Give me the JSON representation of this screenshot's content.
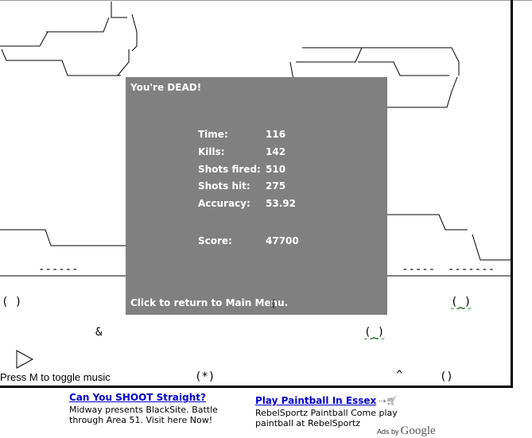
{
  "game": {
    "dialog": {
      "title": "You're DEAD!",
      "stats": [
        {
          "label": "Time:",
          "value": "116"
        },
        {
          "label": "Kills:",
          "value": "142"
        },
        {
          "label": "Shots fired:",
          "value": "510"
        },
        {
          "label": "Shots hit:",
          "value": "275"
        },
        {
          "label": "Accuracy:",
          "value": "53.92"
        }
      ],
      "score": {
        "label": "Score:",
        "value": "47700"
      },
      "footer": "Click to return to Main Menu."
    },
    "music_hint": "Press M to toggle music",
    "sprites": {
      "enemy_a": "( )",
      "enemy_b": "(_)",
      "enemy_c": "(_)",
      "enemy_d": "()",
      "ampersand": "&",
      "player": "(*)",
      "caret": "^",
      "cursor_marker": "(",
      "dash_1": "------",
      "dash_2": "--",
      "dash_3": "---------",
      "dash_4": "-----",
      "dash_5": "-------"
    }
  },
  "ads": [
    {
      "title": "Can You SHOOT Straight?",
      "body_line1": "Midway presents BlackSite. Battle",
      "body_line2": "through Area 51. Visit here Now!"
    },
    {
      "title": "Play Paintball In Essex",
      "body_line1": "RebelSportz Paintball Come play",
      "body_line2": "paintball at RebelSportz"
    }
  ],
  "ads_by": {
    "prefix": "Ads by",
    "brand": "Google"
  }
}
